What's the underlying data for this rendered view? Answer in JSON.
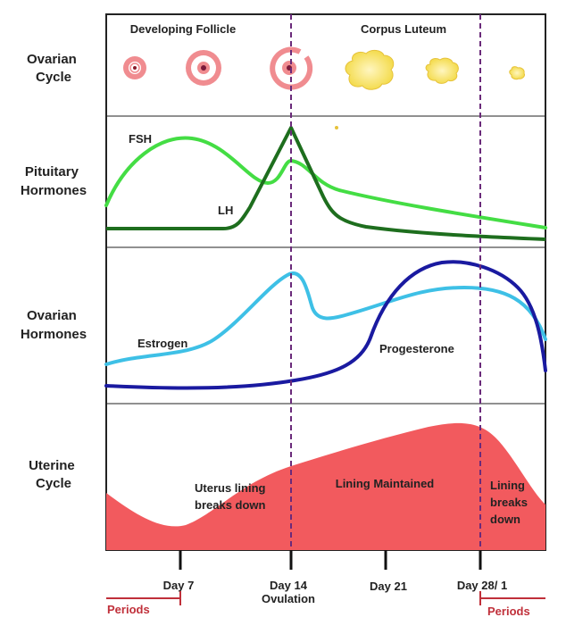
{
  "rows": [
    {
      "line1": "Ovarian",
      "line2": "Cycle"
    },
    {
      "line1": "Pituitary",
      "line2": "Hormones"
    },
    {
      "line1": "Ovarian",
      "line2": "Hormones"
    },
    {
      "line1": "Uterine",
      "line2": "Cycle"
    }
  ],
  "ovarian_cycle": {
    "phase_left": "Developing Follicle",
    "phase_right": "Corpus Luteum"
  },
  "pituitary": {
    "fsh_label": "FSH",
    "lh_label": "LH",
    "fsh_color": "#44dd44",
    "lh_color": "#1e6e1e"
  },
  "ovarian_hormones": {
    "estrogen_label": "Estrogen",
    "progesterone_label": "Progesterone",
    "estrogen_color": "#3ec0e6",
    "progesterone_color": "#1a1aa0"
  },
  "uterine": {
    "label_a_line1": "Uterus lining",
    "label_a_line2": "breaks down",
    "label_b": "Lining Maintained",
    "label_c_line1": "Lining",
    "label_c_line2": "breaks",
    "label_c_line3": "down",
    "fill_color": "#f25a5e"
  },
  "axis": {
    "ticks": [
      {
        "line1": "Day 7",
        "line2": ""
      },
      {
        "line1": "Day 14",
        "line2": "Ovulation"
      },
      {
        "line1": "Day 21",
        "line2": ""
      },
      {
        "line1": "Day 28/ 1",
        "line2": ""
      }
    ],
    "periods_left": "Periods",
    "periods_right": "Periods",
    "periods_color": "#c0303a"
  },
  "divider_color": "#6a2a7a"
}
